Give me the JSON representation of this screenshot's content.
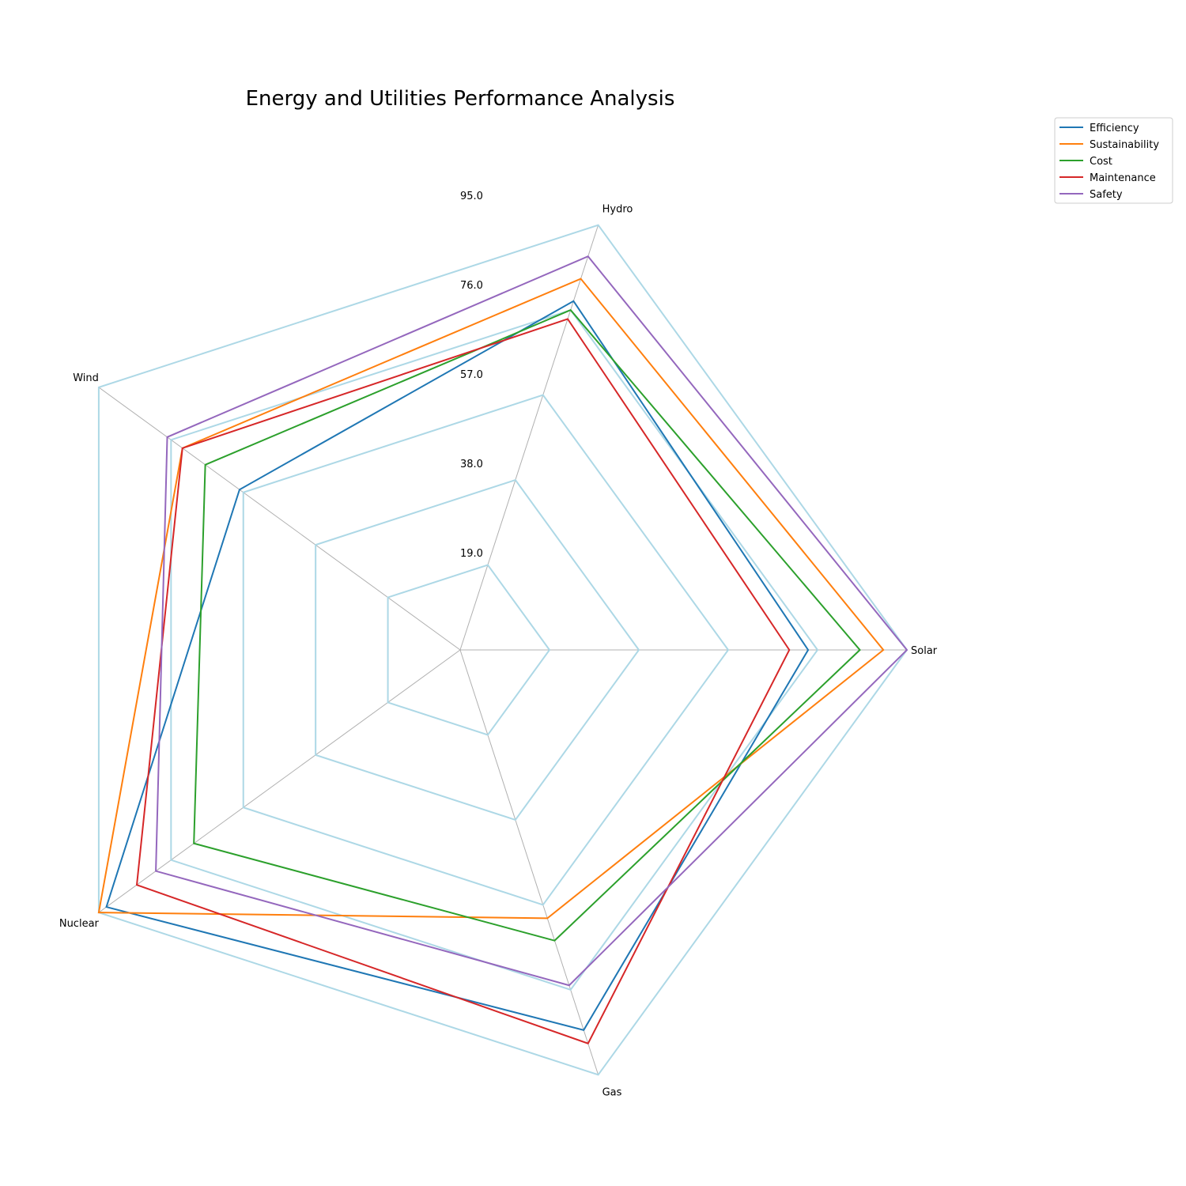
{
  "chart_data": {
    "type": "radar",
    "title": "Energy and Utilities Performance Analysis",
    "categories": [
      "Solar",
      "Hydro",
      "Wind",
      "Nuclear",
      "Gas"
    ],
    "radial_ticks": [
      "19.0",
      "38.0",
      "57.0",
      "76.0",
      "95.0"
    ],
    "rmax": 95,
    "series": [
      {
        "name": " Efficiency",
        "color": "#1f77b4",
        "values": [
          74,
          78,
          58,
          93,
          85
        ]
      },
      {
        "name": " Sustainability",
        "color": "#ff7f0e",
        "values": [
          90,
          83,
          73,
          95,
          60
        ]
      },
      {
        "name": " Cost",
        "color": "#2ca02c",
        "values": [
          85,
          76,
          67,
          70,
          65
        ]
      },
      {
        "name": " Maintenance",
        "color": "#d62728",
        "values": [
          70,
          74,
          73,
          85,
          88
        ]
      },
      {
        "name": " Safety",
        "color": "#9467bd",
        "values": [
          95,
          88,
          77,
          80,
          75
        ]
      }
    ],
    "grid_color": "#add8e6",
    "spoke_color": "#b0b0b0",
    "legend_position": "top-right"
  }
}
